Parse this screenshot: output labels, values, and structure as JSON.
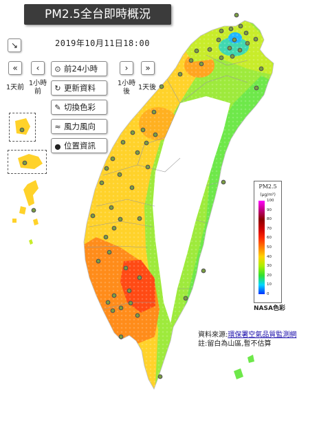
{
  "header": {
    "title": "PM2.5全台即時概況",
    "datetime": "2019年10月11日18:00"
  },
  "controls": {
    "expand_icon": "↘",
    "nav": {
      "prev_day_icon": "«",
      "prev_hour_icon": "‹",
      "next_hour_icon": "›",
      "next_day_icon": "»",
      "prev_day_label": "1天前",
      "prev_hour_label": "1小時前",
      "next_hour_label": "1小時後",
      "next_day_label": "1天後"
    },
    "tools": [
      {
        "icon": "clock-icon",
        "glyph": "⊙",
        "label": "前24小時"
      },
      {
        "icon": "refresh-icon",
        "glyph": "↻",
        "label": "更新資料"
      },
      {
        "icon": "brush-icon",
        "glyph": "✎",
        "label": "切換色彩"
      },
      {
        "icon": "wind-icon",
        "glyph": "≈",
        "label": "風力風向"
      },
      {
        "icon": "location-pin-icon",
        "glyph": "⬤",
        "label": "位置資訊"
      }
    ]
  },
  "legend": {
    "title": "PM2.5",
    "unit": "(μg/m³)",
    "ticks": [
      "100",
      "90",
      "80",
      "70",
      "60",
      "50",
      "40",
      "30",
      "20",
      "10",
      "0"
    ],
    "scale_name": "NASA色彩",
    "colors": [
      "#ff00ff",
      "#c0007f",
      "#8b0000",
      "#cc0000",
      "#ff2a00",
      "#ff7f00",
      "#ffd400",
      "#aaf000",
      "#30e030",
      "#00d7ff",
      "#0030ff"
    ]
  },
  "source": {
    "prefix": "資料來源:",
    "link_text": "環保署空氣品質監測網",
    "note": "註:留白為山區,暫不估算"
  }
}
